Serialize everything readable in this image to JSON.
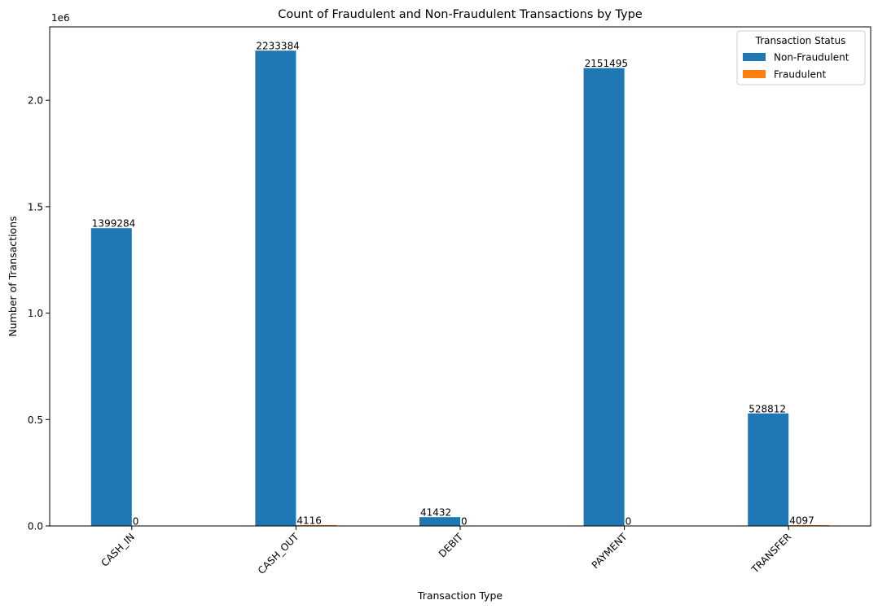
{
  "chart_data": {
    "type": "bar",
    "title": "Count of Fraudulent and Non-Fraudulent Transactions by Type",
    "xlabel": "Transaction Type",
    "ylabel": "Number of Transactions",
    "y_scale_label": "1e6",
    "ylim": [
      0,
      2345053
    ],
    "yticks": [
      0,
      500000,
      1000000,
      1500000,
      2000000
    ],
    "ytick_labels": [
      "0.0",
      "0.5",
      "1.0",
      "1.5",
      "2.0"
    ],
    "categories": [
      "CASH_IN",
      "CASH_OUT",
      "DEBIT",
      "PAYMENT",
      "TRANSFER"
    ],
    "series": [
      {
        "name": "Non-Fraudulent",
        "color": "#1f77b4",
        "values": [
          1399284,
          2233384,
          41432,
          2151495,
          528812
        ]
      },
      {
        "name": "Fraudulent",
        "color": "#ff7f0e",
        "values": [
          0,
          4116,
          0,
          0,
          4097
        ]
      }
    ],
    "data_labels": [
      [
        "1399284",
        "2233384",
        "41432",
        "2151495",
        "528812"
      ],
      [
        "0",
        "4116",
        "0",
        "0",
        "4097"
      ]
    ],
    "legend": {
      "title": "Transaction Status",
      "placement": "top-right"
    },
    "grid": false
  }
}
